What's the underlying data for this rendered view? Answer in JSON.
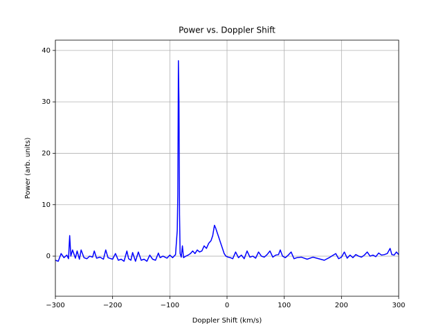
{
  "chart_data": {
    "type": "line",
    "title": "Power vs. Doppler Shift",
    "xlabel": "Doppler Shift (km/s)",
    "ylabel": "Power (arb. units)",
    "color": "#0000ff",
    "grid": true,
    "xlim": [
      -300,
      300
    ],
    "ylim": [
      -7.8,
      42
    ],
    "xticks": [
      {
        "value": -300,
        "label": "−300"
      },
      {
        "value": -200,
        "label": "−200"
      },
      {
        "value": -100,
        "label": "−100"
      },
      0,
      100,
      200,
      300
    ],
    "yticks": [
      0,
      10,
      20,
      30,
      40
    ],
    "x": [
      -300,
      -295,
      -290,
      -285,
      -280,
      -277,
      -275,
      -273,
      -270,
      -265,
      -262,
      -258,
      -255,
      -250,
      -245,
      -240,
      -235,
      -232,
      -228,
      -222,
      -216,
      -212,
      -208,
      -200,
      -195,
      -190,
      -185,
      -180,
      -175,
      -172,
      -168,
      -165,
      -160,
      -155,
      -150,
      -145,
      -140,
      -135,
      -130,
      -125,
      -120,
      -117,
      -112,
      -105,
      -100,
      -95,
      -90,
      -87,
      -86,
      -85,
      -84,
      -83,
      -82,
      -80,
      -78,
      -76,
      -72,
      -68,
      -64,
      -60,
      -56,
      -52,
      -48,
      -44,
      -40,
      -36,
      -32,
      -28,
      -25,
      -22,
      -20,
      -17,
      -14,
      -11,
      -8,
      -5,
      -2,
      2,
      6,
      10,
      15,
      20,
      25,
      30,
      35,
      40,
      45,
      50,
      55,
      60,
      65,
      70,
      75,
      80,
      85,
      90,
      93,
      97,
      102,
      107,
      112,
      117,
      122,
      130,
      140,
      150,
      160,
      170,
      180,
      190,
      195,
      200,
      205,
      210,
      215,
      220,
      225,
      230,
      235,
      240,
      245,
      250,
      255,
      260,
      265,
      270,
      275,
      280,
      285,
      288,
      292,
      296,
      300
    ],
    "values": [
      -0.8,
      -1,
      0.5,
      -0.3,
      0.2,
      -0.5,
      4,
      0,
      1.2,
      -0.4,
      1,
      -0.6,
      1.2,
      -0.3,
      -0.5,
      0,
      -0.2,
      1,
      -0.4,
      -0.2,
      -0.6,
      1.2,
      -0.3,
      -0.6,
      0.5,
      -0.8,
      -0.6,
      -1,
      1,
      -0.5,
      -0.8,
      0.7,
      -1,
      0.8,
      -0.8,
      -0.6,
      -1,
      0.2,
      -0.6,
      -0.8,
      0.6,
      -0.3,
      0,
      -0.4,
      0.2,
      -0.3,
      0.3,
      5,
      12,
      38,
      30,
      8,
      0.5,
      -0.2,
      2,
      -0.3,
      0,
      0.2,
      0.5,
      1,
      0.5,
      1.2,
      0.8,
      1,
      2,
      1.5,
      2.5,
      3,
      4,
      6,
      5.5,
      4.5,
      3.5,
      2.5,
      1.5,
      0.5,
      0,
      -0.2,
      -0.3,
      -0.5,
      0.8,
      -0.3,
      0.2,
      -0.5,
      1,
      -0.2,
      0,
      -0.4,
      0.8,
      0,
      -0.2,
      0.3,
      1,
      -0.2,
      0.2,
      0.3,
      1.2,
      0,
      -0.3,
      0.2,
      0.8,
      -0.5,
      -0.3,
      -0.2,
      -0.6,
      -0.2,
      -0.5,
      -0.8,
      -0.2,
      0.5,
      -0.5,
      -0.2,
      0.8,
      -0.4,
      0.2,
      -0.3,
      0.3,
      0,
      -0.2,
      0.2,
      0.8,
      0,
      0.2,
      -0.1,
      0.6,
      0.2,
      0.3,
      0.5,
      1.5,
      0.3,
      0.2,
      0.8,
      0.3
    ]
  }
}
